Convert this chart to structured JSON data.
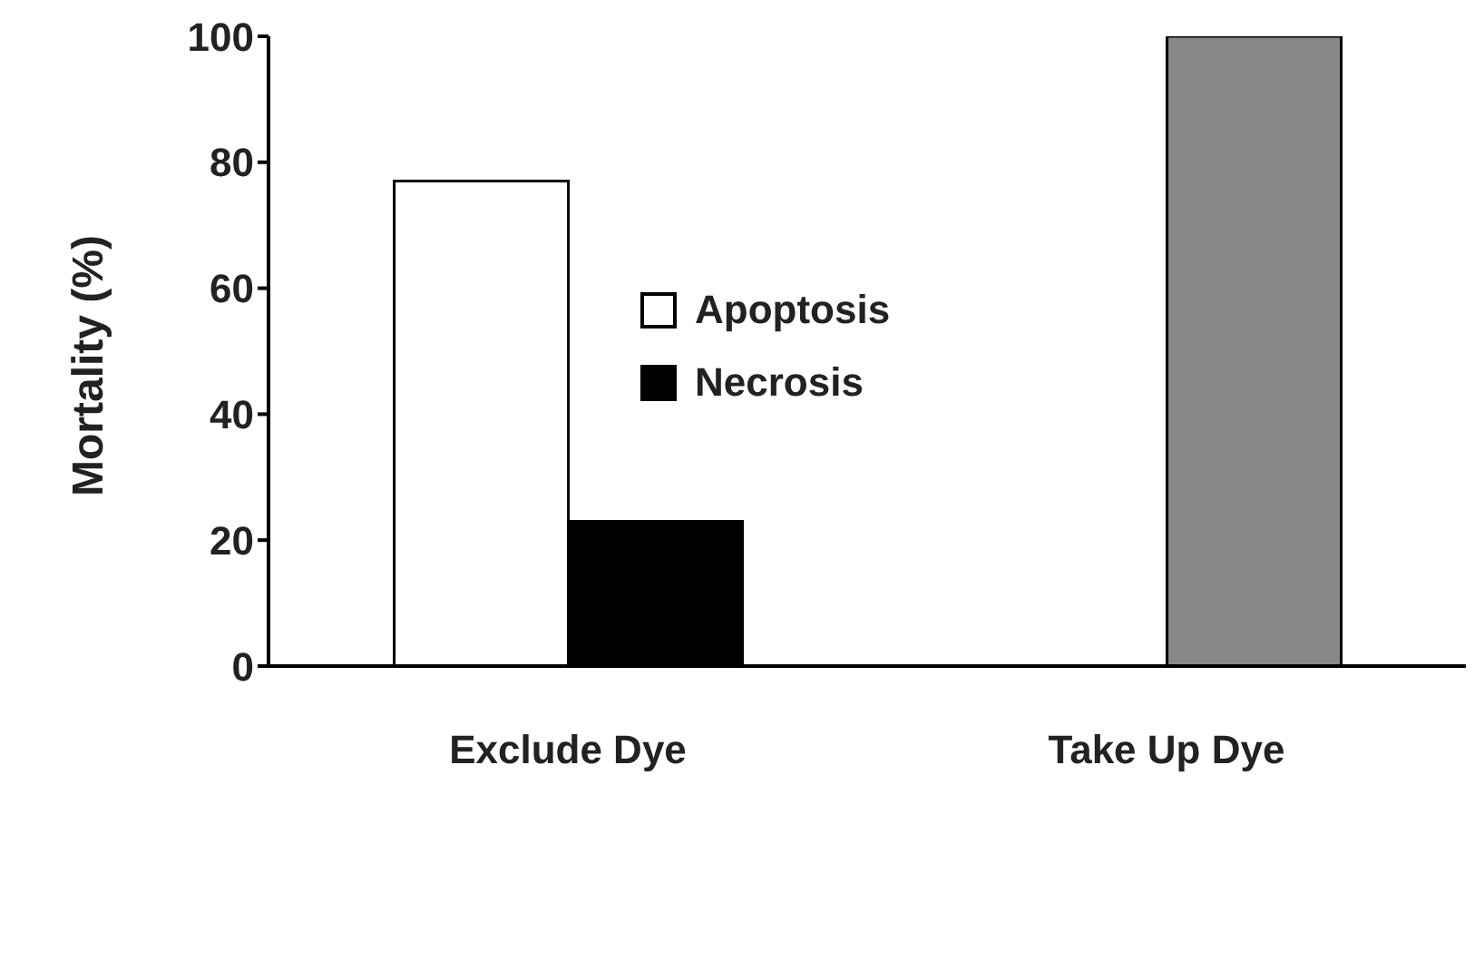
{
  "chart_data": {
    "type": "bar",
    "ylabel": "Mortality (%)",
    "categories": [
      "Exclude Dye",
      "Take Up Dye"
    ],
    "series": [
      {
        "name": "Apoptosis",
        "color": "#ffffff",
        "values": [
          77,
          null
        ]
      },
      {
        "name": "Necrosis",
        "color": "#000000",
        "values": [
          23,
          null
        ]
      },
      {
        "color": "#888888",
        "values": [
          null,
          100
        ]
      }
    ],
    "ylim": [
      0,
      100
    ],
    "yticks": [
      0,
      20,
      40,
      60,
      80,
      100
    ],
    "legend": "top"
  }
}
